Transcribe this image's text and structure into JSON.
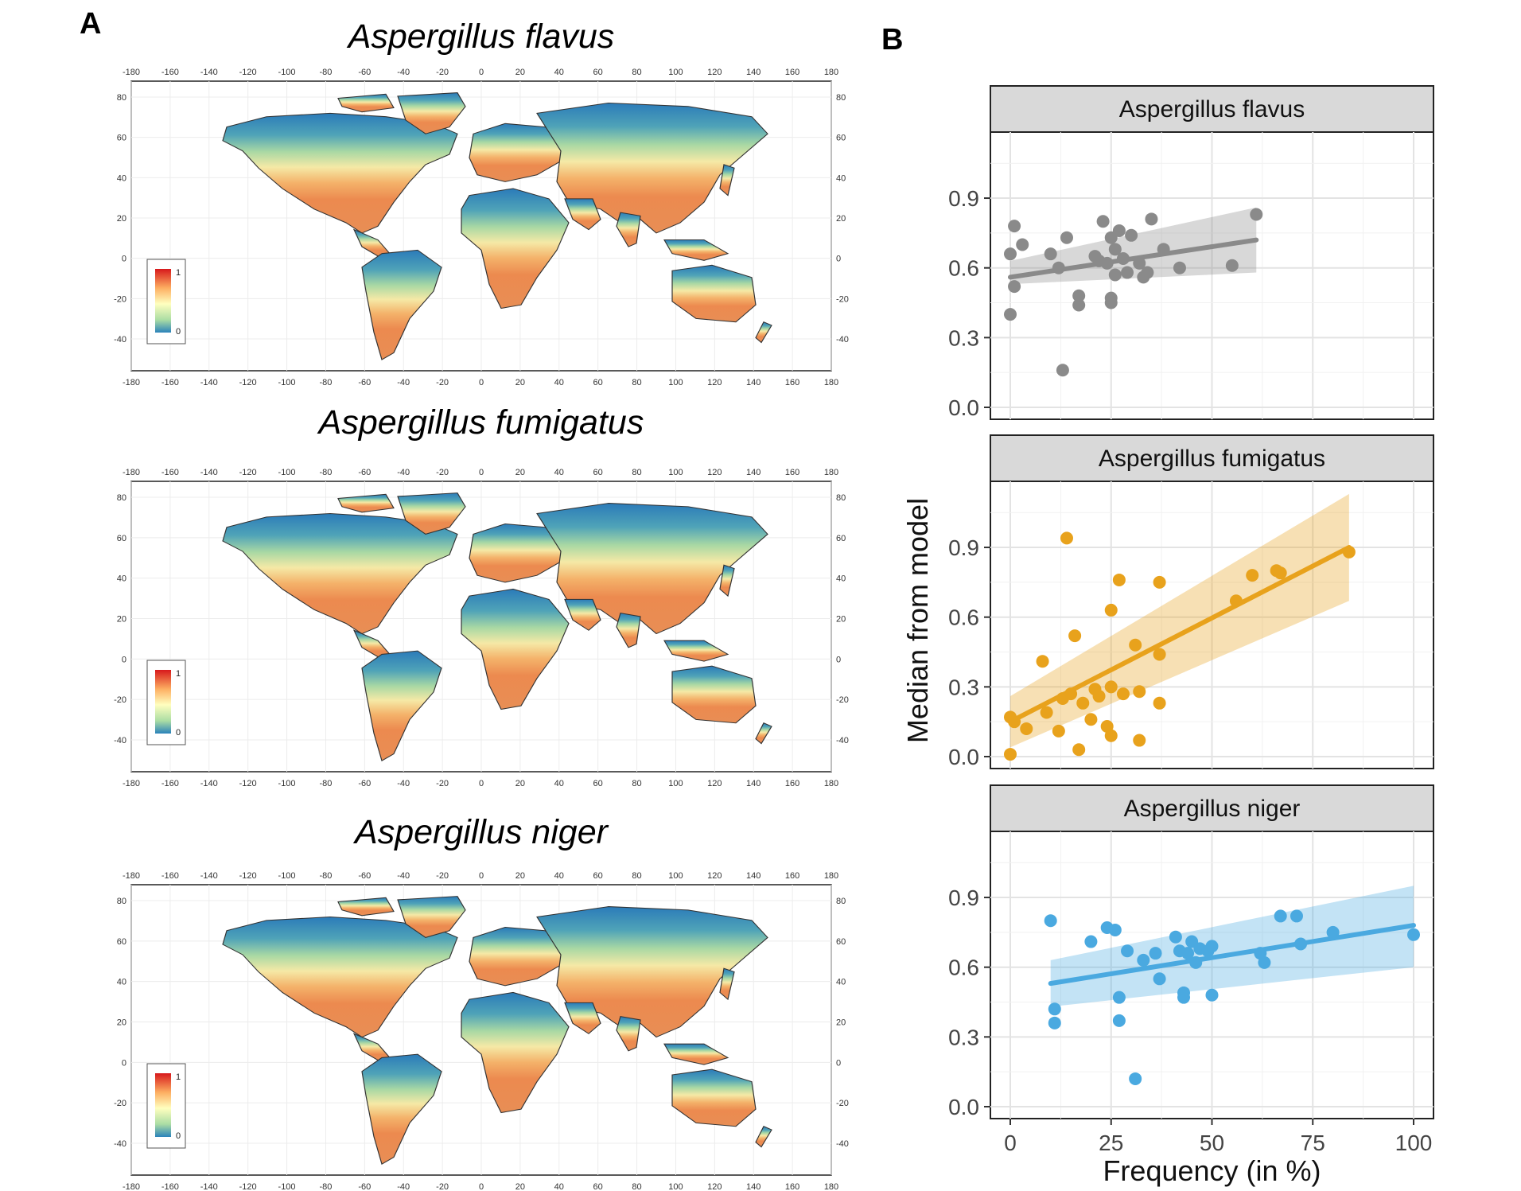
{
  "figure": {
    "panel_a_label": "A",
    "panel_b_label": "B",
    "maps": [
      {
        "title": "Aspergillus flavus",
        "legend_max": "1",
        "legend_min": "0"
      },
      {
        "title": "Aspergillus fumigatus",
        "legend_max": "1",
        "legend_min": "0"
      },
      {
        "title": "Aspergillus niger",
        "legend_max": "1",
        "legend_min": "0"
      }
    ],
    "map_lon_ticks": [
      "-180",
      "-160",
      "-140",
      "-120",
      "-100",
      "-80",
      "-60",
      "-40",
      "-20",
      "0",
      "20",
      "40",
      "60",
      "80",
      "100",
      "120",
      "140",
      "160",
      "180"
    ],
    "map_lat_ticks": [
      "80",
      "60",
      "40",
      "20",
      "0",
      "-20",
      "-40"
    ],
    "colors": {
      "flavus": "#8a8a8a",
      "fumigatus": "#e8a21c",
      "niger": "#4aa9e0",
      "strip_bg": "#d9d9d9",
      "low": "#2b83ba",
      "mid": "#ffffbf",
      "high": "#d7191c"
    }
  },
  "chart_data": {
    "type": "scatter",
    "panel": "B",
    "xlabel": "Frequency (in %)",
    "ylabel": "Median from model",
    "xlim": [
      0,
      100
    ],
    "ylim": [
      0,
      1.15
    ],
    "xticks": [
      "0",
      "25",
      "50",
      "75",
      "100"
    ],
    "yticks": [
      "0.0",
      "0.3",
      "0.6",
      "0.9"
    ],
    "facets": [
      {
        "name": "Aspergillus flavus",
        "color_key": "flavus",
        "points": [
          [
            0,
            0.4
          ],
          [
            0,
            0.66
          ],
          [
            1,
            0.52
          ],
          [
            1,
            0.78
          ],
          [
            3,
            0.7
          ],
          [
            10,
            0.66
          ],
          [
            12,
            0.6
          ],
          [
            13,
            0.16
          ],
          [
            14,
            0.73
          ],
          [
            17,
            0.44
          ],
          [
            17,
            0.48
          ],
          [
            21,
            0.65
          ],
          [
            22,
            0.63
          ],
          [
            23,
            0.8
          ],
          [
            24,
            0.62
          ],
          [
            25,
            0.73
          ],
          [
            25,
            0.45
          ],
          [
            25,
            0.47
          ],
          [
            26,
            0.57
          ],
          [
            26,
            0.68
          ],
          [
            27,
            0.76
          ],
          [
            28,
            0.64
          ],
          [
            29,
            0.58
          ],
          [
            30,
            0.74
          ],
          [
            32,
            0.62
          ],
          [
            33,
            0.56
          ],
          [
            34,
            0.58
          ],
          [
            35,
            0.81
          ],
          [
            38,
            0.68
          ],
          [
            42,
            0.6
          ],
          [
            55,
            0.61
          ],
          [
            61,
            0.83
          ]
        ],
        "fit": [
          [
            0,
            0.56
          ],
          [
            61,
            0.72
          ]
        ],
        "band_lower": [
          [
            0,
            0.53
          ],
          [
            61,
            0.58
          ]
        ],
        "band_upper": [
          [
            0,
            0.63
          ],
          [
            61,
            0.86
          ]
        ]
      },
      {
        "name": "Aspergillus fumigatus",
        "color_key": "fumigatus",
        "points": [
          [
            0,
            0.01
          ],
          [
            0,
            0.17
          ],
          [
            1,
            0.15
          ],
          [
            4,
            0.12
          ],
          [
            8,
            0.41
          ],
          [
            9,
            0.19
          ],
          [
            12,
            0.11
          ],
          [
            13,
            0.25
          ],
          [
            14,
            0.94
          ],
          [
            15,
            0.27
          ],
          [
            16,
            0.52
          ],
          [
            17,
            0.03
          ],
          [
            18,
            0.23
          ],
          [
            20,
            0.16
          ],
          [
            21,
            0.29
          ],
          [
            22,
            0.26
          ],
          [
            24,
            0.13
          ],
          [
            25,
            0.09
          ],
          [
            25,
            0.3
          ],
          [
            25,
            0.63
          ],
          [
            27,
            0.76
          ],
          [
            28,
            0.27
          ],
          [
            31,
            0.48
          ],
          [
            32,
            0.07
          ],
          [
            32,
            0.28
          ],
          [
            37,
            0.75
          ],
          [
            37,
            0.44
          ],
          [
            37,
            0.23
          ],
          [
            56,
            0.67
          ],
          [
            60,
            0.78
          ],
          [
            66,
            0.8
          ],
          [
            67,
            0.79
          ],
          [
            84,
            0.88
          ]
        ],
        "fit": [
          [
            0,
            0.15
          ],
          [
            84,
            0.9
          ]
        ],
        "band_lower": [
          [
            0,
            0.04
          ],
          [
            84,
            0.67
          ]
        ],
        "band_upper": [
          [
            0,
            0.26
          ],
          [
            84,
            1.13
          ]
        ]
      },
      {
        "name": "Aspergillus niger",
        "color_key": "niger",
        "points": [
          [
            10,
            0.8
          ],
          [
            11,
            0.42
          ],
          [
            11,
            0.36
          ],
          [
            20,
            0.71
          ],
          [
            24,
            0.77
          ],
          [
            26,
            0.76
          ],
          [
            27,
            0.47
          ],
          [
            27,
            0.37
          ],
          [
            29,
            0.67
          ],
          [
            31,
            0.12
          ],
          [
            33,
            0.63
          ],
          [
            36,
            0.66
          ],
          [
            37,
            0.55
          ],
          [
            41,
            0.73
          ],
          [
            42,
            0.67
          ],
          [
            43,
            0.47
          ],
          [
            43,
            0.49
          ],
          [
            44,
            0.66
          ],
          [
            45,
            0.71
          ],
          [
            46,
            0.62
          ],
          [
            47,
            0.68
          ],
          [
            49,
            0.67
          ],
          [
            50,
            0.69
          ],
          [
            50,
            0.48
          ],
          [
            62,
            0.66
          ],
          [
            63,
            0.62
          ],
          [
            67,
            0.82
          ],
          [
            71,
            0.82
          ],
          [
            72,
            0.7
          ],
          [
            80,
            0.75
          ],
          [
            100,
            0.74
          ]
        ],
        "fit": [
          [
            10,
            0.53
          ],
          [
            100,
            0.78
          ]
        ],
        "band_lower": [
          [
            10,
            0.43
          ],
          [
            100,
            0.6
          ]
        ],
        "band_upper": [
          [
            10,
            0.63
          ],
          [
            100,
            0.95
          ]
        ]
      }
    ]
  }
}
